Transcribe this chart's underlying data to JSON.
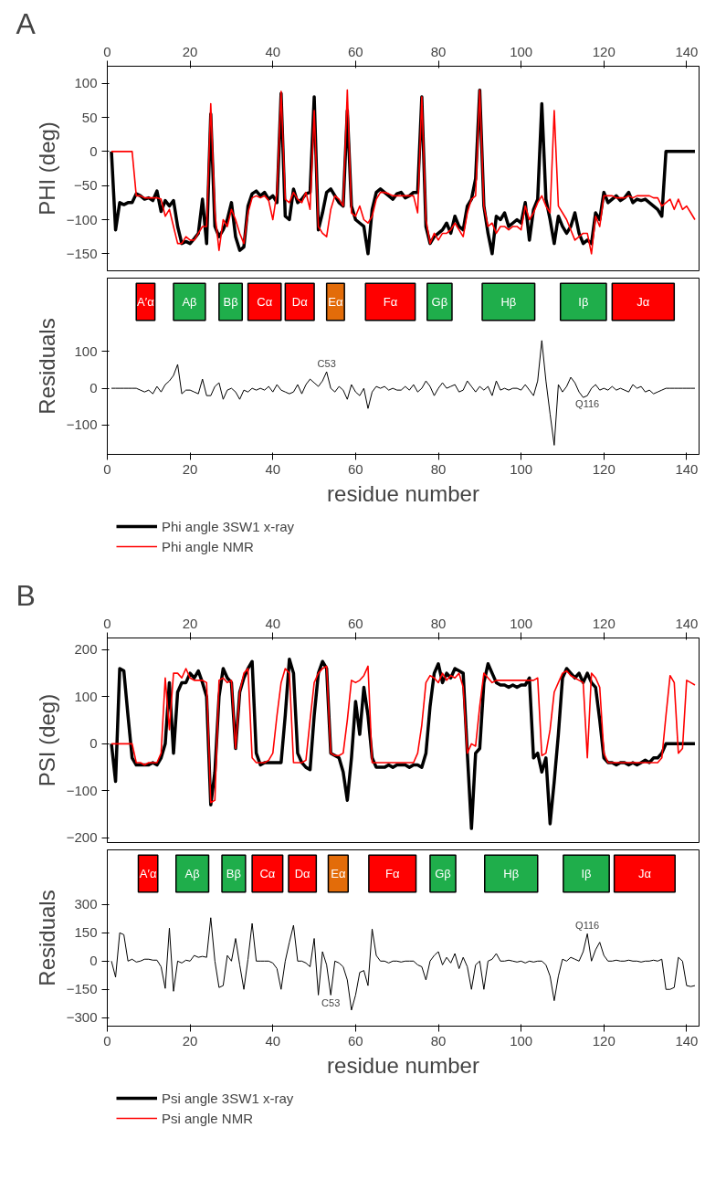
{
  "chart_data": [
    {
      "type": "line",
      "title": "A",
      "ylabel": "PHI (deg)",
      "xlim": [
        0,
        143
      ],
      "xticks": [
        0,
        20,
        40,
        60,
        80,
        100,
        120,
        140
      ],
      "ylim": [
        -175,
        125
      ],
      "yticks": [
        -150,
        -100,
        -50,
        0,
        50,
        100
      ],
      "legend": "bottom",
      "x": [
        1,
        2,
        3,
        4,
        5,
        6,
        7,
        8,
        9,
        10,
        11,
        12,
        13,
        14,
        15,
        16,
        17,
        18,
        19,
        20,
        21,
        22,
        23,
        24,
        25,
        26,
        27,
        28,
        29,
        30,
        31,
        32,
        33,
        34,
        35,
        36,
        37,
        38,
        39,
        40,
        41,
        42,
        43,
        44,
        45,
        46,
        47,
        48,
        49,
        50,
        51,
        52,
        53,
        54,
        55,
        56,
        57,
        58,
        59,
        60,
        61,
        62,
        63,
        64,
        65,
        66,
        67,
        68,
        69,
        70,
        71,
        72,
        73,
        74,
        75,
        76,
        77,
        78,
        79,
        80,
        81,
        82,
        83,
        84,
        85,
        86,
        87,
        88,
        89,
        90,
        91,
        92,
        93,
        94,
        95,
        96,
        97,
        98,
        99,
        100,
        101,
        102,
        103,
        104,
        105,
        106,
        107,
        108,
        109,
        110,
        111,
        112,
        113,
        114,
        115,
        116,
        117,
        118,
        119,
        120,
        121,
        122,
        123,
        124,
        125,
        126,
        127,
        128,
        129,
        130,
        131,
        132,
        133,
        134,
        135,
        136,
        137,
        138,
        139,
        140,
        141,
        142
      ],
      "series": [
        {
          "name": "Phi angle 3SW1 x-ray",
          "color": "#000000",
          "values": [
            0,
            -115,
            -75,
            -78,
            -75,
            -75,
            -62,
            -65,
            -70,
            -68,
            -72,
            -58,
            -88,
            -72,
            -80,
            -72,
            -110,
            -135,
            -132,
            -135,
            -128,
            -120,
            -70,
            -135,
            55,
            -110,
            -125,
            -115,
            -100,
            -75,
            -125,
            -145,
            -140,
            -80,
            -62,
            -58,
            -65,
            -60,
            -70,
            -65,
            -75,
            85,
            -95,
            -100,
            -55,
            -75,
            -70,
            -62,
            -60,
            80,
            -115,
            -90,
            -60,
            -55,
            -65,
            -75,
            -80,
            60,
            -80,
            -100,
            -105,
            -110,
            -150,
            -85,
            -60,
            -55,
            -60,
            -65,
            -70,
            -62,
            -60,
            -68,
            -65,
            -60,
            -60,
            80,
            -110,
            -135,
            -125,
            -120,
            -115,
            -105,
            -120,
            -95,
            -110,
            -115,
            -80,
            -70,
            -40,
            90,
            -80,
            -120,
            -150,
            -95,
            -100,
            -90,
            -110,
            -105,
            -100,
            -105,
            -75,
            -130,
            -85,
            -70,
            70,
            -70,
            -100,
            -135,
            -95,
            -110,
            -120,
            -110,
            -90,
            -120,
            -135,
            -130,
            -135,
            -90,
            -100,
            -60,
            -75,
            -70,
            -65,
            -72,
            -68,
            -60,
            -75,
            -70,
            -72,
            -70,
            -75,
            -80,
            -85,
            -95,
            0,
            0,
            0,
            0,
            0,
            0,
            0,
            0
          ]
        },
        {
          "name": "Phi angle NMR",
          "color": "#ff0000",
          "values": [
            0,
            0,
            0,
            0,
            0,
            0,
            -65,
            -65,
            -68,
            -68,
            -68,
            -68,
            -70,
            -95,
            -85,
            -110,
            -135,
            -135,
            -125,
            -130,
            -130,
            -120,
            -110,
            -110,
            70,
            -90,
            -145,
            -100,
            -110,
            -85,
            -100,
            -120,
            -135,
            -90,
            -68,
            -65,
            -68,
            -65,
            -72,
            -100,
            -60,
            88,
            -70,
            -75,
            -60,
            -70,
            -75,
            -60,
            -85,
            60,
            -110,
            -120,
            -125,
            -85,
            -65,
            -70,
            -80,
            90,
            -90,
            -95,
            -80,
            -100,
            -105,
            -95,
            -70,
            -60,
            -60,
            -62,
            -65,
            -65,
            -65,
            -65,
            -65,
            -65,
            -90,
            80,
            -100,
            -135,
            -120,
            -130,
            -120,
            -120,
            -115,
            -105,
            -115,
            -125,
            -90,
            -70,
            -65,
            90,
            -80,
            -110,
            -105,
            -120,
            -110,
            -110,
            -115,
            -110,
            -110,
            -115,
            -80,
            -100,
            -90,
            -75,
            -65,
            -80,
            -90,
            60,
            -80,
            -90,
            -100,
            -115,
            -130,
            -125,
            -120,
            -120,
            -150,
            -95,
            -110,
            -65,
            -65,
            -65,
            -68,
            -68,
            -68,
            -65,
            -68,
            -65,
            -65,
            -65,
            -65,
            -68,
            -68,
            -80,
            -75,
            -70,
            -85,
            -70,
            -85,
            -80,
            -90,
            -100
          ]
        }
      ]
    },
    {
      "type": "line",
      "ylabel": "Residuals",
      "xlabel": "residue number",
      "xlim": [
        0,
        143
      ],
      "xticks": [
        0,
        20,
        40,
        60,
        80,
        100,
        120,
        140
      ],
      "ylim": [
        -180,
        300
      ],
      "yticks": [
        -100,
        0,
        100
      ],
      "bands": [
        {
          "axis": "x",
          "from": 7,
          "to": 11.5,
          "label": "A′α",
          "color": "#ff0000"
        },
        {
          "axis": "x",
          "from": 16,
          "to": 23.7,
          "label": "Aβ",
          "color": "#1fae4b"
        },
        {
          "axis": "x",
          "from": 27,
          "to": 32.6,
          "label": "Bβ",
          "color": "#1fae4b"
        },
        {
          "axis": "x",
          "from": 34,
          "to": 42,
          "label": "Cα",
          "color": "#ff0000"
        },
        {
          "axis": "x",
          "from": 43,
          "to": 50,
          "label": "Dα",
          "color": "#ff0000"
        },
        {
          "axis": "x",
          "from": 53,
          "to": 57.3,
          "label": "Eα",
          "color": "#e36c09"
        },
        {
          "axis": "x",
          "from": 62.4,
          "to": 74.4,
          "label": "Fα",
          "color": "#ff0000"
        },
        {
          "axis": "x",
          "from": 77.3,
          "to": 83.3,
          "label": "Gβ",
          "color": "#1fae4b"
        },
        {
          "axis": "x",
          "from": 90.6,
          "to": 103.3,
          "label": "Hβ",
          "color": "#1fae4b"
        },
        {
          "axis": "x",
          "from": 109.5,
          "to": 120.6,
          "label": "Iβ",
          "color": "#1fae4b"
        },
        {
          "axis": "x",
          "from": 122,
          "to": 137,
          "label": "Jα",
          "color": "#ff0000"
        }
      ],
      "annotations": [
        {
          "text": "C53",
          "x": 53,
          "y": 45
        },
        {
          "text": "Q116",
          "x": 116,
          "y": -20
        }
      ],
      "x": [
        1,
        2,
        3,
        4,
        5,
        6,
        7,
        8,
        9,
        10,
        11,
        12,
        13,
        14,
        15,
        16,
        17,
        18,
        19,
        20,
        21,
        22,
        23,
        24,
        25,
        26,
        27,
        28,
        29,
        30,
        31,
        32,
        33,
        34,
        35,
        36,
        37,
        38,
        39,
        40,
        41,
        42,
        43,
        44,
        45,
        46,
        47,
        48,
        49,
        50,
        51,
        52,
        53,
        54,
        55,
        56,
        57,
        58,
        59,
        60,
        61,
        62,
        63,
        64,
        65,
        66,
        67,
        68,
        69,
        70,
        71,
        72,
        73,
        74,
        75,
        76,
        77,
        78,
        79,
        80,
        81,
        82,
        83,
        84,
        85,
        86,
        87,
        88,
        89,
        90,
        91,
        92,
        93,
        94,
        95,
        96,
        97,
        98,
        99,
        100,
        101,
        102,
        103,
        104,
        105,
        106,
        107,
        108,
        109,
        110,
        111,
        112,
        113,
        114,
        115,
        116,
        117,
        118,
        119,
        120,
        121,
        122,
        123,
        124,
        125,
        126,
        127,
        128,
        129,
        130,
        131,
        132,
        133,
        134,
        135,
        136,
        137,
        138,
        139,
        140,
        141,
        142
      ],
      "series": [
        {
          "color": "#000000",
          "values": [
            0,
            0,
            0,
            0,
            0,
            0,
            0,
            -5,
            -10,
            -5,
            -15,
            5,
            -10,
            10,
            20,
            35,
            65,
            -15,
            -5,
            -5,
            -10,
            -15,
            25,
            -20,
            -20,
            5,
            15,
            -30,
            -5,
            0,
            -10,
            -30,
            -5,
            -10,
            0,
            -5,
            0,
            -5,
            5,
            -10,
            10,
            -5,
            -10,
            -15,
            -10,
            10,
            -15,
            10,
            25,
            15,
            5,
            20,
            45,
            0,
            -10,
            5,
            -5,
            -30,
            10,
            -10,
            -20,
            0,
            -55,
            -10,
            5,
            0,
            5,
            -5,
            0,
            -5,
            -5,
            5,
            -5,
            10,
            -10,
            0,
            20,
            5,
            -20,
            0,
            15,
            0,
            5,
            10,
            -10,
            -5,
            20,
            5,
            -10,
            5,
            -5,
            5,
            -20,
            20,
            -5,
            0,
            -5,
            0,
            0,
            -5,
            10,
            -5,
            -20,
            20,
            130,
            20,
            -70,
            -155,
            10,
            -10,
            5,
            30,
            15,
            -10,
            -25,
            -20,
            0,
            10,
            -5,
            0,
            -5,
            5,
            -5,
            0,
            -5,
            -10,
            10,
            0,
            5,
            -10,
            -5,
            -15,
            -10,
            -5,
            0,
            0,
            0,
            0,
            0,
            0,
            0,
            0
          ]
        }
      ]
    },
    {
      "type": "line",
      "title": "B",
      "ylabel": "PSI (deg)",
      "xlim": [
        0,
        143
      ],
      "xticks": [
        0,
        20,
        40,
        60,
        80,
        100,
        120,
        140
      ],
      "ylim": [
        -210,
        225
      ],
      "yticks": [
        -200,
        -100,
        0,
        100,
        200
      ],
      "legend": "bottom",
      "x": [
        1,
        2,
        3,
        4,
        5,
        6,
        7,
        8,
        9,
        10,
        11,
        12,
        13,
        14,
        15,
        16,
        17,
        18,
        19,
        20,
        21,
        22,
        23,
        24,
        25,
        26,
        27,
        28,
        29,
        30,
        31,
        32,
        33,
        34,
        35,
        36,
        37,
        38,
        39,
        40,
        41,
        42,
        43,
        44,
        45,
        46,
        47,
        48,
        49,
        50,
        51,
        52,
        53,
        54,
        55,
        56,
        57,
        58,
        59,
        60,
        61,
        62,
        63,
        64,
        65,
        66,
        67,
        68,
        69,
        70,
        71,
        72,
        73,
        74,
        75,
        76,
        77,
        78,
        79,
        80,
        81,
        82,
        83,
        84,
        85,
        86,
        87,
        88,
        89,
        90,
        91,
        92,
        93,
        94,
        95,
        96,
        97,
        98,
        99,
        100,
        101,
        102,
        103,
        104,
        105,
        106,
        107,
        108,
        109,
        110,
        111,
        112,
        113,
        114,
        115,
        116,
        117,
        118,
        119,
        120,
        121,
        122,
        123,
        124,
        125,
        126,
        127,
        128,
        129,
        130,
        131,
        132,
        133,
        134,
        135,
        136,
        137,
        138,
        139,
        140,
        141,
        142
      ],
      "series": [
        {
          "name": "Psi angle 3SW1 x-ray",
          "color": "#000000",
          "values": [
            0,
            -80,
            160,
            155,
            60,
            -30,
            -45,
            -45,
            -45,
            -45,
            -40,
            -45,
            -30,
            0,
            130,
            -20,
            110,
            130,
            130,
            150,
            140,
            155,
            130,
            100,
            -130,
            -60,
            100,
            160,
            140,
            130,
            -10,
            110,
            140,
            160,
            175,
            -20,
            -45,
            -40,
            -40,
            -40,
            -40,
            -40,
            60,
            180,
            150,
            -20,
            -40,
            -50,
            -55,
            60,
            150,
            175,
            160,
            -20,
            -25,
            -30,
            -60,
            -120,
            -30,
            90,
            20,
            120,
            60,
            -30,
            -50,
            -50,
            -50,
            -45,
            -50,
            -45,
            -45,
            -45,
            -50,
            -45,
            -45,
            -50,
            -20,
            80,
            150,
            170,
            130,
            150,
            140,
            160,
            155,
            150,
            -20,
            -180,
            -20,
            -10,
            130,
            170,
            150,
            130,
            125,
            125,
            120,
            125,
            120,
            125,
            125,
            140,
            -30,
            -20,
            -60,
            -30,
            -170,
            -80,
            20,
            140,
            160,
            150,
            140,
            150,
            130,
            150,
            130,
            120,
            50,
            -30,
            -40,
            -40,
            -45,
            -40,
            -40,
            -45,
            -40,
            -45,
            -40,
            -35,
            -40,
            -30,
            -30,
            -20,
            0,
            0,
            0,
            0,
            0,
            0,
            0,
            0
          ]
        },
        {
          "name": "Psi angle NMR",
          "color": "#ff0000",
          "values": [
            0,
            0,
            0,
            0,
            0,
            0,
            -40,
            -40,
            -45,
            -40,
            -40,
            -40,
            -20,
            140,
            30,
            150,
            150,
            140,
            160,
            140,
            135,
            135,
            135,
            130,
            -125,
            -120,
            135,
            140,
            130,
            135,
            -10,
            110,
            150,
            160,
            -30,
            -40,
            -40,
            -40,
            -35,
            -20,
            60,
            130,
            160,
            150,
            -40,
            -40,
            -40,
            -35,
            50,
            130,
            150,
            160,
            165,
            -20,
            -25,
            -25,
            -20,
            50,
            135,
            130,
            135,
            145,
            165,
            -40,
            -40,
            -40,
            -40,
            -40,
            -40,
            -40,
            -40,
            -40,
            -40,
            -40,
            -20,
            40,
            130,
            145,
            140,
            130,
            150,
            135,
            145,
            140,
            150,
            120,
            -20,
            0,
            -5,
            80,
            150,
            140,
            130,
            135,
            135,
            135,
            135,
            135,
            135,
            135,
            135,
            135,
            135,
            140,
            -25,
            -20,
            30,
            110,
            130,
            150,
            155,
            145,
            140,
            135,
            130,
            -30,
            150,
            140,
            120,
            -20,
            -40,
            -40,
            -40,
            -40,
            -40,
            -40,
            -40,
            -40,
            -40,
            -40,
            -40,
            -40,
            -40,
            -30,
            60,
            145,
            130,
            -20,
            -10,
            135,
            130,
            125
          ]
        }
      ]
    },
    {
      "type": "line",
      "ylabel": "Residuals",
      "xlabel": "residue number",
      "xlim": [
        0,
        143
      ],
      "xticks": [
        0,
        20,
        40,
        60,
        80,
        100,
        120,
        140
      ],
      "ylim": [
        -345,
        590
      ],
      "yticks": [
        -300,
        -150,
        0,
        150,
        300
      ],
      "bands": [
        {
          "axis": "x",
          "from": 7.5,
          "to": 12.2,
          "label": "A′α",
          "color": "#ff0000"
        },
        {
          "axis": "x",
          "from": 16.6,
          "to": 24.5,
          "label": "Aβ",
          "color": "#1fae4b"
        },
        {
          "axis": "x",
          "from": 27.7,
          "to": 33.4,
          "label": "Bβ",
          "color": "#1fae4b"
        },
        {
          "axis": "x",
          "from": 35,
          "to": 42.4,
          "label": "Cα",
          "color": "#ff0000"
        },
        {
          "axis": "x",
          "from": 43.8,
          "to": 50.5,
          "label": "Dα",
          "color": "#ff0000"
        },
        {
          "axis": "x",
          "from": 53.4,
          "to": 58.2,
          "label": "Eα",
          "color": "#e36c09"
        },
        {
          "axis": "x",
          "from": 63.2,
          "to": 74.6,
          "label": "Fα",
          "color": "#ff0000"
        },
        {
          "axis": "x",
          "from": 78,
          "to": 84.2,
          "label": "Gβ",
          "color": "#1fae4b"
        },
        {
          "axis": "x",
          "from": 91.2,
          "to": 104,
          "label": "Hβ",
          "color": "#1fae4b"
        },
        {
          "axis": "x",
          "from": 110.2,
          "to": 121.3,
          "label": "Iβ",
          "color": "#1fae4b"
        },
        {
          "axis": "x",
          "from": 122.5,
          "to": 137.2,
          "label": "Jα",
          "color": "#ff0000"
        }
      ],
      "annotations": [
        {
          "text": "C53",
          "x": 54,
          "y": -180
        },
        {
          "text": "Q116",
          "x": 116,
          "y": 145
        }
      ],
      "x": [
        1,
        2,
        3,
        4,
        5,
        6,
        7,
        8,
        9,
        10,
        11,
        12,
        13,
        14,
        15,
        16,
        17,
        18,
        19,
        20,
        21,
        22,
        23,
        24,
        25,
        26,
        27,
        28,
        29,
        30,
        31,
        32,
        33,
        34,
        35,
        36,
        37,
        38,
        39,
        40,
        41,
        42,
        43,
        44,
        45,
        46,
        47,
        48,
        49,
        50,
        51,
        52,
        53,
        54,
        55,
        56,
        57,
        58,
        59,
        60,
        61,
        62,
        63,
        64,
        65,
        66,
        67,
        68,
        69,
        70,
        71,
        72,
        73,
        74,
        75,
        76,
        77,
        78,
        79,
        80,
        81,
        82,
        83,
        84,
        85,
        86,
        87,
        88,
        89,
        90,
        91,
        92,
        93,
        94,
        95,
        96,
        97,
        98,
        99,
        100,
        101,
        102,
        103,
        104,
        105,
        106,
        107,
        108,
        109,
        110,
        111,
        112,
        113,
        114,
        115,
        116,
        117,
        118,
        119,
        120,
        121,
        122,
        123,
        124,
        125,
        126,
        127,
        128,
        129,
        130,
        131,
        132,
        133,
        134,
        135,
        136,
        137,
        138,
        139,
        140,
        141,
        142
      ],
      "series": [
        {
          "color": "#000000",
          "values": [
            0,
            -85,
            150,
            140,
            0,
            10,
            -5,
            0,
            10,
            10,
            5,
            5,
            -30,
            -145,
            175,
            -160,
            0,
            -10,
            5,
            0,
            30,
            20,
            25,
            20,
            230,
            0,
            -140,
            -130,
            30,
            0,
            120,
            -20,
            -150,
            10,
            200,
            0,
            0,
            0,
            0,
            -10,
            -40,
            -150,
            0,
            100,
            190,
            0,
            0,
            -10,
            -30,
            120,
            -180,
            50,
            -20,
            -180,
            0,
            -10,
            -30,
            -100,
            -260,
            -180,
            -60,
            -50,
            -130,
            170,
            30,
            0,
            0,
            -10,
            0,
            0,
            -5,
            0,
            0,
            0,
            -20,
            -30,
            -100,
            0,
            30,
            50,
            -20,
            20,
            -10,
            40,
            -40,
            20,
            -30,
            -150,
            -20,
            0,
            -150,
            0,
            10,
            40,
            0,
            0,
            5,
            0,
            -5,
            0,
            -10,
            0,
            -5,
            0,
            0,
            -20,
            -80,
            -210,
            -80,
            10,
            0,
            20,
            10,
            0,
            50,
            145,
            0,
            60,
            100,
            30,
            0,
            0,
            5,
            0,
            0,
            5,
            0,
            0,
            -5,
            0,
            0,
            5,
            0,
            10,
            -150,
            -150,
            -140,
            20,
            0,
            -130,
            -135,
            -130
          ]
        }
      ]
    }
  ]
}
